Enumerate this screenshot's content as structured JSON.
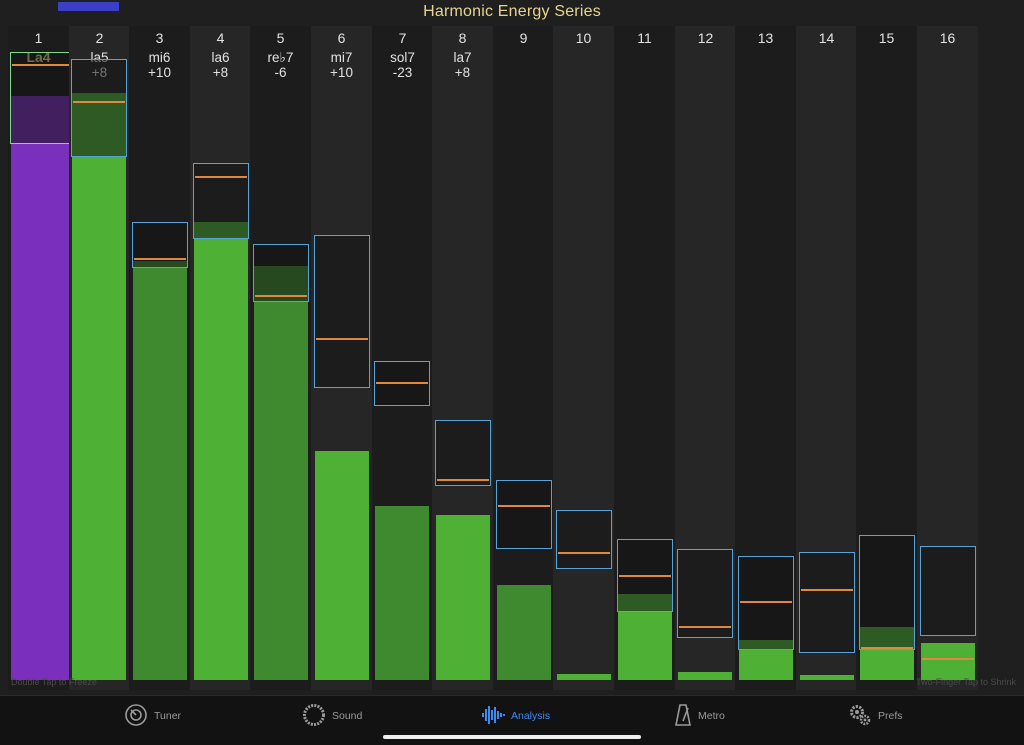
{
  "title": "Harmonic Energy Series",
  "progress": 0.3,
  "hints": {
    "left": "Double Tap to Freeze",
    "right": "Two-Finger Tap to Shrink"
  },
  "harmonics": [
    {
      "num": "1",
      "note": "La4",
      "cents": ""
    },
    {
      "num": "2",
      "note": "la5",
      "cents": "+8"
    },
    {
      "num": "3",
      "note": "mi6",
      "cents": "+10"
    },
    {
      "num": "4",
      "note": "la6",
      "cents": "+8"
    },
    {
      "num": "5",
      "note": "re♭7",
      "cents": "-6"
    },
    {
      "num": "6",
      "note": "mi7",
      "cents": "+10"
    },
    {
      "num": "7",
      "note": "sol7",
      "cents": "-23"
    },
    {
      "num": "8",
      "note": "la7",
      "cents": "+8"
    },
    {
      "num": "9",
      "note": "",
      "cents": ""
    },
    {
      "num": "10",
      "note": "",
      "cents": ""
    },
    {
      "num": "11",
      "note": "",
      "cents": ""
    },
    {
      "num": "12",
      "note": "",
      "cents": ""
    },
    {
      "num": "13",
      "note": "",
      "cents": ""
    },
    {
      "num": "14",
      "note": "",
      "cents": ""
    },
    {
      "num": "15",
      "note": "",
      "cents": ""
    },
    {
      "num": "16",
      "note": "",
      "cents": ""
    }
  ],
  "chart_data": {
    "type": "bar",
    "categories": [
      "1",
      "2",
      "3",
      "4",
      "5",
      "6",
      "7",
      "8",
      "9",
      "10",
      "11",
      "12",
      "13",
      "14",
      "15",
      "16"
    ],
    "series": [
      {
        "values": [
          0.912,
          0.917,
          0.655,
          0.716,
          0.647,
          0.358,
          0.272,
          0.258,
          0.148,
          0.009,
          0.135,
          0.012,
          0.062,
          0.008,
          0.083,
          0.058
        ]
      }
    ],
    "range_boxes": [
      {
        "lo": 0.839,
        "hi": 0.982,
        "marker": 0.962
      },
      {
        "lo": 0.818,
        "hi": 0.971,
        "marker": 0.904
      },
      {
        "lo": 0.643,
        "hi": 0.715,
        "marker": 0.66
      },
      {
        "lo": 0.689,
        "hi": 0.808,
        "marker": 0.787
      },
      {
        "lo": 0.591,
        "hi": 0.681,
        "marker": 0.602
      },
      {
        "lo": 0.456,
        "hi": 0.695,
        "marker": 0.535
      },
      {
        "lo": 0.428,
        "hi": 0.498,
        "marker": 0.465
      },
      {
        "lo": 0.303,
        "hi": 0.406,
        "marker": 0.314
      },
      {
        "lo": 0.205,
        "hi": 0.313,
        "marker": 0.274
      },
      {
        "lo": 0.174,
        "hi": 0.266,
        "marker": 0.2
      },
      {
        "lo": 0.106,
        "hi": 0.22,
        "marker": 0.164
      },
      {
        "lo": 0.066,
        "hi": 0.205,
        "marker": 0.085
      },
      {
        "lo": 0.047,
        "hi": 0.194,
        "marker": 0.124
      },
      {
        "lo": 0.042,
        "hi": 0.2,
        "marker": 0.142
      },
      {
        "lo": 0.046,
        "hi": 0.226,
        "marker": 0.051
      },
      {
        "lo": 0.069,
        "hi": 0.21,
        "marker": 0.034
      }
    ],
    "colors": {
      "fundamental": "#7a2fbd",
      "bright": "#4fb036",
      "dark": "#3f8a2e",
      "box": "#58a3d6",
      "marker": "#e1873e"
    },
    "bright_columns": [
      2,
      4,
      6,
      8,
      10,
      11,
      12,
      13,
      14,
      15,
      16
    ]
  },
  "tabs": [
    {
      "label": "Tuner",
      "icon": "tuner-icon",
      "active": false
    },
    {
      "label": "Sound",
      "icon": "sound-icon",
      "active": false
    },
    {
      "label": "Analysis",
      "icon": "analysis-icon",
      "active": true
    },
    {
      "label": "Metro",
      "icon": "metronome-icon",
      "active": false
    },
    {
      "label": "Prefs",
      "icon": "gear-icon",
      "active": false
    }
  ]
}
